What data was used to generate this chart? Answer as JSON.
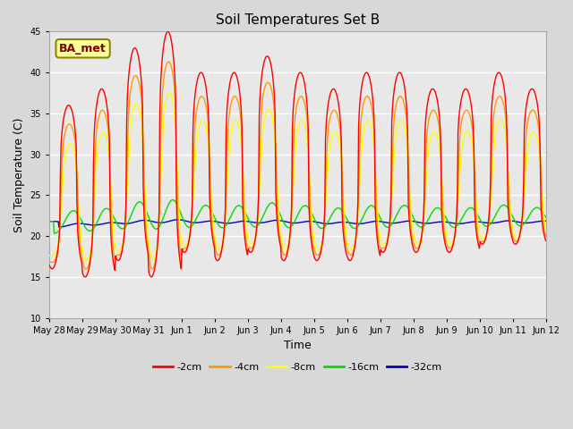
{
  "title": "Soil Temperatures Set B",
  "xlabel": "Time",
  "ylabel": "Soil Temperature (C)",
  "ylim": [
    10,
    45
  ],
  "yticks": [
    10,
    15,
    20,
    25,
    30,
    35,
    40,
    45
  ],
  "annotation_text": "BA_met",
  "colors": {
    "-2cm": "#ff0000",
    "-4cm": "#ff9900",
    "-8cm": "#ffff00",
    "-16cm": "#00dd00",
    "-32cm": "#0000cc"
  },
  "fig_bg_color": "#d8d8d8",
  "plot_bg_color": "#e8e8e8",
  "grid_color": "#ffffff",
  "num_days": 15,
  "day_peaks_2cm": [
    36,
    38,
    43,
    45,
    40,
    40,
    42,
    40,
    38,
    40,
    40,
    38,
    38,
    40,
    38
  ],
  "day_troughs_2cm": [
    16,
    15,
    17,
    15,
    18,
    17,
    18,
    17,
    17,
    17,
    18,
    18,
    18,
    19,
    19
  ],
  "tick_labels": [
    "May 28",
    "May 29",
    "May 30",
    "May 31",
    "Jun 1",
    "Jun 2",
    "Jun 3",
    "Jun 4",
    "Jun 5",
    "Jun 6",
    "Jun 7",
    "Jun 8",
    "Jun 9",
    "Jun 10",
    "Jun 11",
    "Jun 12"
  ]
}
